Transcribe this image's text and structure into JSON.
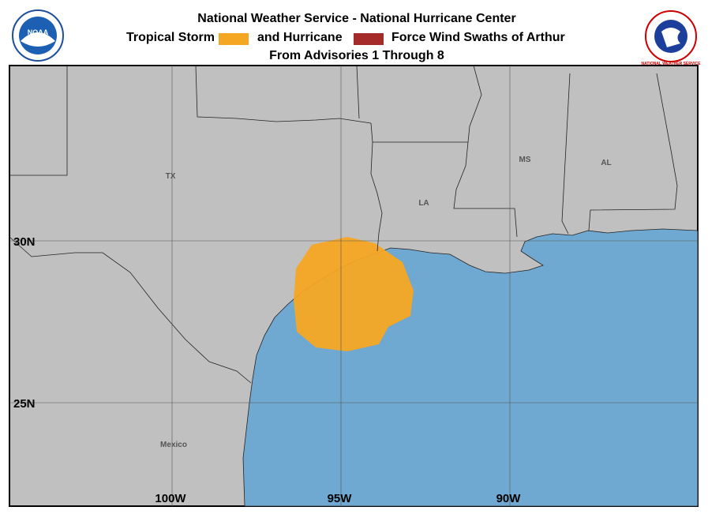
{
  "header": {
    "title": "National Weather Service - National Hurricane Center",
    "legend": [
      {
        "label": "Tropical Storm",
        "color": "#f5a623"
      },
      {
        "label": "and Hurricane",
        "color": "#a52a2a"
      }
    ],
    "legend_suffix": "Force Wind Swaths of Arthur",
    "subtitle": "From Advisories 1 Through 8",
    "left_logo": "NOAA",
    "right_logo": "NATIONAL WEATHER SERVICE"
  },
  "map": {
    "lat_labels": [
      "30N",
      "25N"
    ],
    "lon_labels": [
      "100W",
      "95W",
      "90W"
    ],
    "places": [
      "TX",
      "LA",
      "MS",
      "AL",
      "Mexico"
    ]
  }
}
